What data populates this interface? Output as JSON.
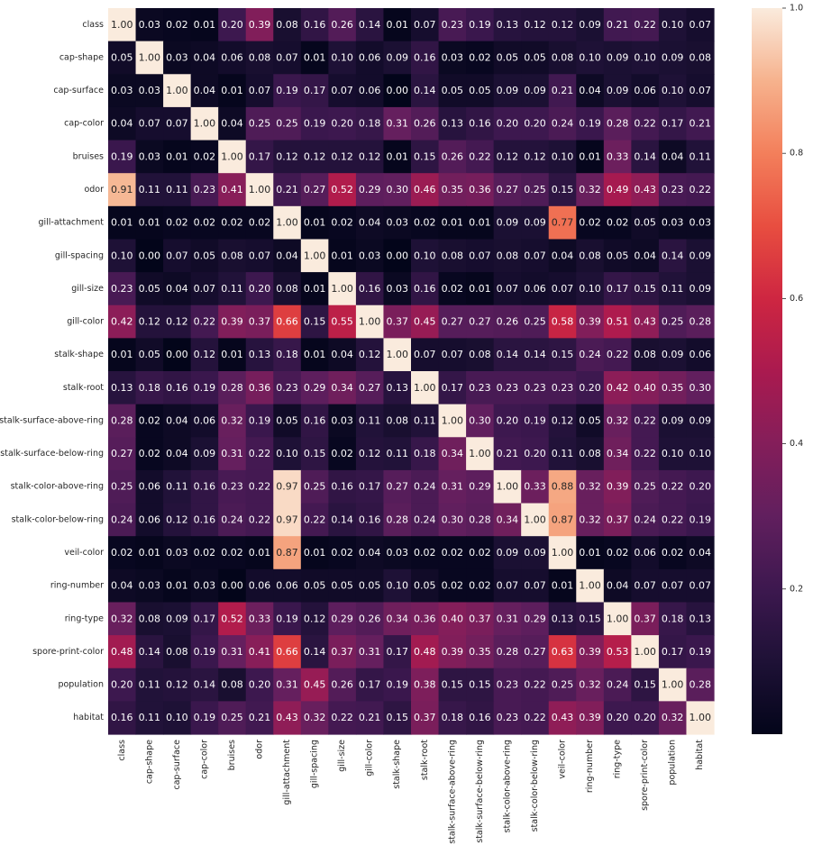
{
  "chart_data": {
    "type": "heatmap",
    "title": "",
    "xlabel": "",
    "ylabel": "",
    "labels": [
      "class",
      "cap-shape",
      "cap-surface",
      "cap-color",
      "bruises",
      "odor",
      "gill-attachment",
      "gill-spacing",
      "gill-size",
      "gill-color",
      "stalk-shape",
      "stalk-root",
      "stalk-surface-above-ring",
      "stalk-surface-below-ring",
      "stalk-color-above-ring",
      "stalk-color-below-ring",
      "veil-color",
      "ring-number",
      "ring-type",
      "spore-print-color",
      "population",
      "habitat"
    ],
    "values": [
      [
        1.0,
        0.03,
        0.02,
        0.01,
        0.2,
        0.39,
        0.08,
        0.16,
        0.26,
        0.14,
        0.01,
        0.07,
        0.23,
        0.19,
        0.13,
        0.12,
        0.12,
        0.09,
        0.21,
        0.22,
        0.1,
        0.07
      ],
      [
        0.05,
        1.0,
        0.03,
        0.04,
        0.06,
        0.08,
        0.07,
        0.01,
        0.1,
        0.06,
        0.09,
        0.16,
        0.03,
        0.02,
        0.05,
        0.05,
        0.08,
        0.1,
        0.09,
        0.1,
        0.09,
        0.08
      ],
      [
        0.03,
        0.03,
        1.0,
        0.04,
        0.01,
        0.07,
        0.19,
        0.17,
        0.07,
        0.06,
        0.0,
        0.14,
        0.05,
        0.05,
        0.09,
        0.09,
        0.21,
        0.04,
        0.09,
        0.06,
        0.1,
        0.07
      ],
      [
        0.04,
        0.07,
        0.07,
        1.0,
        0.04,
        0.25,
        0.25,
        0.19,
        0.2,
        0.18,
        0.31,
        0.26,
        0.13,
        0.16,
        0.2,
        0.2,
        0.24,
        0.19,
        0.28,
        0.22,
        0.17,
        0.21
      ],
      [
        0.19,
        0.03,
        0.01,
        0.02,
        1.0,
        0.17,
        0.12,
        0.12,
        0.12,
        0.12,
        0.01,
        0.15,
        0.26,
        0.22,
        0.12,
        0.12,
        0.1,
        0.01,
        0.33,
        0.14,
        0.04,
        0.11
      ],
      [
        0.91,
        0.11,
        0.11,
        0.23,
        0.41,
        1.0,
        0.21,
        0.27,
        0.52,
        0.29,
        0.3,
        0.46,
        0.35,
        0.36,
        0.27,
        0.25,
        0.15,
        0.32,
        0.49,
        0.43,
        0.23,
        0.22
      ],
      [
        0.01,
        0.01,
        0.02,
        0.02,
        0.02,
        0.02,
        1.0,
        0.01,
        0.02,
        0.04,
        0.03,
        0.02,
        0.01,
        0.01,
        0.09,
        0.09,
        0.77,
        0.02,
        0.02,
        0.05,
        0.03,
        0.03
      ],
      [
        0.1,
        0.0,
        0.07,
        0.05,
        0.08,
        0.07,
        0.04,
        1.0,
        0.01,
        0.03,
        0.0,
        0.1,
        0.08,
        0.07,
        0.08,
        0.07,
        0.04,
        0.08,
        0.05,
        0.04,
        0.14,
        0.09
      ],
      [
        0.23,
        0.05,
        0.04,
        0.07,
        0.11,
        0.2,
        0.08,
        0.01,
        1.0,
        0.16,
        0.03,
        0.16,
        0.02,
        0.01,
        0.07,
        0.06,
        0.07,
        0.1,
        0.17,
        0.15,
        0.11,
        0.09
      ],
      [
        0.42,
        0.12,
        0.12,
        0.22,
        0.39,
        0.37,
        0.66,
        0.15,
        0.55,
        1.0,
        0.37,
        0.45,
        0.27,
        0.27,
        0.26,
        0.25,
        0.58,
        0.39,
        0.51,
        0.43,
        0.25,
        0.28
      ],
      [
        0.01,
        0.05,
        0.0,
        0.12,
        0.01,
        0.13,
        0.18,
        0.01,
        0.04,
        0.12,
        1.0,
        0.07,
        0.07,
        0.08,
        0.14,
        0.14,
        0.15,
        0.24,
        0.22,
        0.08,
        0.09,
        0.06
      ],
      [
        0.13,
        0.18,
        0.16,
        0.19,
        0.28,
        0.36,
        0.23,
        0.29,
        0.34,
        0.27,
        0.13,
        1.0,
        0.17,
        0.23,
        0.23,
        0.23,
        0.23,
        0.2,
        0.42,
        0.4,
        0.35,
        0.3
      ],
      [
        0.28,
        0.02,
        0.04,
        0.06,
        0.32,
        0.19,
        0.05,
        0.16,
        0.03,
        0.11,
        0.08,
        0.11,
        1.0,
        0.3,
        0.2,
        0.19,
        0.12,
        0.05,
        0.32,
        0.22,
        0.09,
        0.09
      ],
      [
        0.27,
        0.02,
        0.04,
        0.09,
        0.31,
        0.22,
        0.1,
        0.15,
        0.02,
        0.12,
        0.11,
        0.18,
        0.34,
        1.0,
        0.21,
        0.2,
        0.11,
        0.08,
        0.34,
        0.22,
        0.1,
        0.1
      ],
      [
        0.25,
        0.06,
        0.11,
        0.16,
        0.23,
        0.22,
        0.97,
        0.25,
        0.16,
        0.17,
        0.27,
        0.24,
        0.31,
        0.29,
        1.0,
        0.33,
        0.88,
        0.32,
        0.39,
        0.25,
        0.22,
        0.2
      ],
      [
        0.24,
        0.06,
        0.12,
        0.16,
        0.24,
        0.22,
        0.97,
        0.22,
        0.14,
        0.16,
        0.28,
        0.24,
        0.3,
        0.28,
        0.34,
        1.0,
        0.87,
        0.32,
        0.37,
        0.24,
        0.22,
        0.19
      ],
      [
        0.02,
        0.01,
        0.03,
        0.02,
        0.02,
        0.01,
        0.87,
        0.01,
        0.02,
        0.04,
        0.03,
        0.02,
        0.02,
        0.02,
        0.09,
        0.09,
        1.0,
        0.01,
        0.02,
        0.06,
        0.02,
        0.04
      ],
      [
        0.04,
        0.03,
        0.01,
        0.03,
        0.0,
        0.06,
        0.06,
        0.05,
        0.05,
        0.05,
        0.1,
        0.05,
        0.02,
        0.02,
        0.07,
        0.07,
        0.01,
        1.0,
        0.04,
        0.07,
        0.07,
        0.07
      ],
      [
        0.32,
        0.08,
        0.09,
        0.17,
        0.52,
        0.33,
        0.19,
        0.12,
        0.29,
        0.26,
        0.34,
        0.36,
        0.4,
        0.37,
        0.31,
        0.29,
        0.13,
        0.15,
        1.0,
        0.37,
        0.18,
        0.13
      ],
      [
        0.48,
        0.14,
        0.08,
        0.19,
        0.31,
        0.41,
        0.66,
        0.14,
        0.37,
        0.31,
        0.17,
        0.48,
        0.39,
        0.35,
        0.28,
        0.27,
        0.63,
        0.39,
        0.53,
        1.0,
        0.17,
        0.19
      ],
      [
        0.2,
        0.11,
        0.12,
        0.14,
        0.08,
        0.2,
        0.31,
        0.45,
        0.26,
        0.17,
        0.19,
        0.38,
        0.15,
        0.15,
        0.23,
        0.22,
        0.25,
        0.32,
        0.24,
        0.15,
        1.0,
        0.28
      ],
      [
        0.16,
        0.11,
        0.1,
        0.19,
        0.25,
        0.21,
        0.43,
        0.32,
        0.22,
        0.21,
        0.15,
        0.37,
        0.18,
        0.16,
        0.23,
        0.22,
        0.43,
        0.39,
        0.2,
        0.2,
        0.32,
        1.0
      ]
    ],
    "vmin": 0.0,
    "vmax": 1.0,
    "colormap": "rocket",
    "colorbar_ticks": [
      "0.2",
      "0.4",
      "0.6",
      "0.8",
      "1.0"
    ],
    "grid": false,
    "legend": "colorbar-right"
  }
}
